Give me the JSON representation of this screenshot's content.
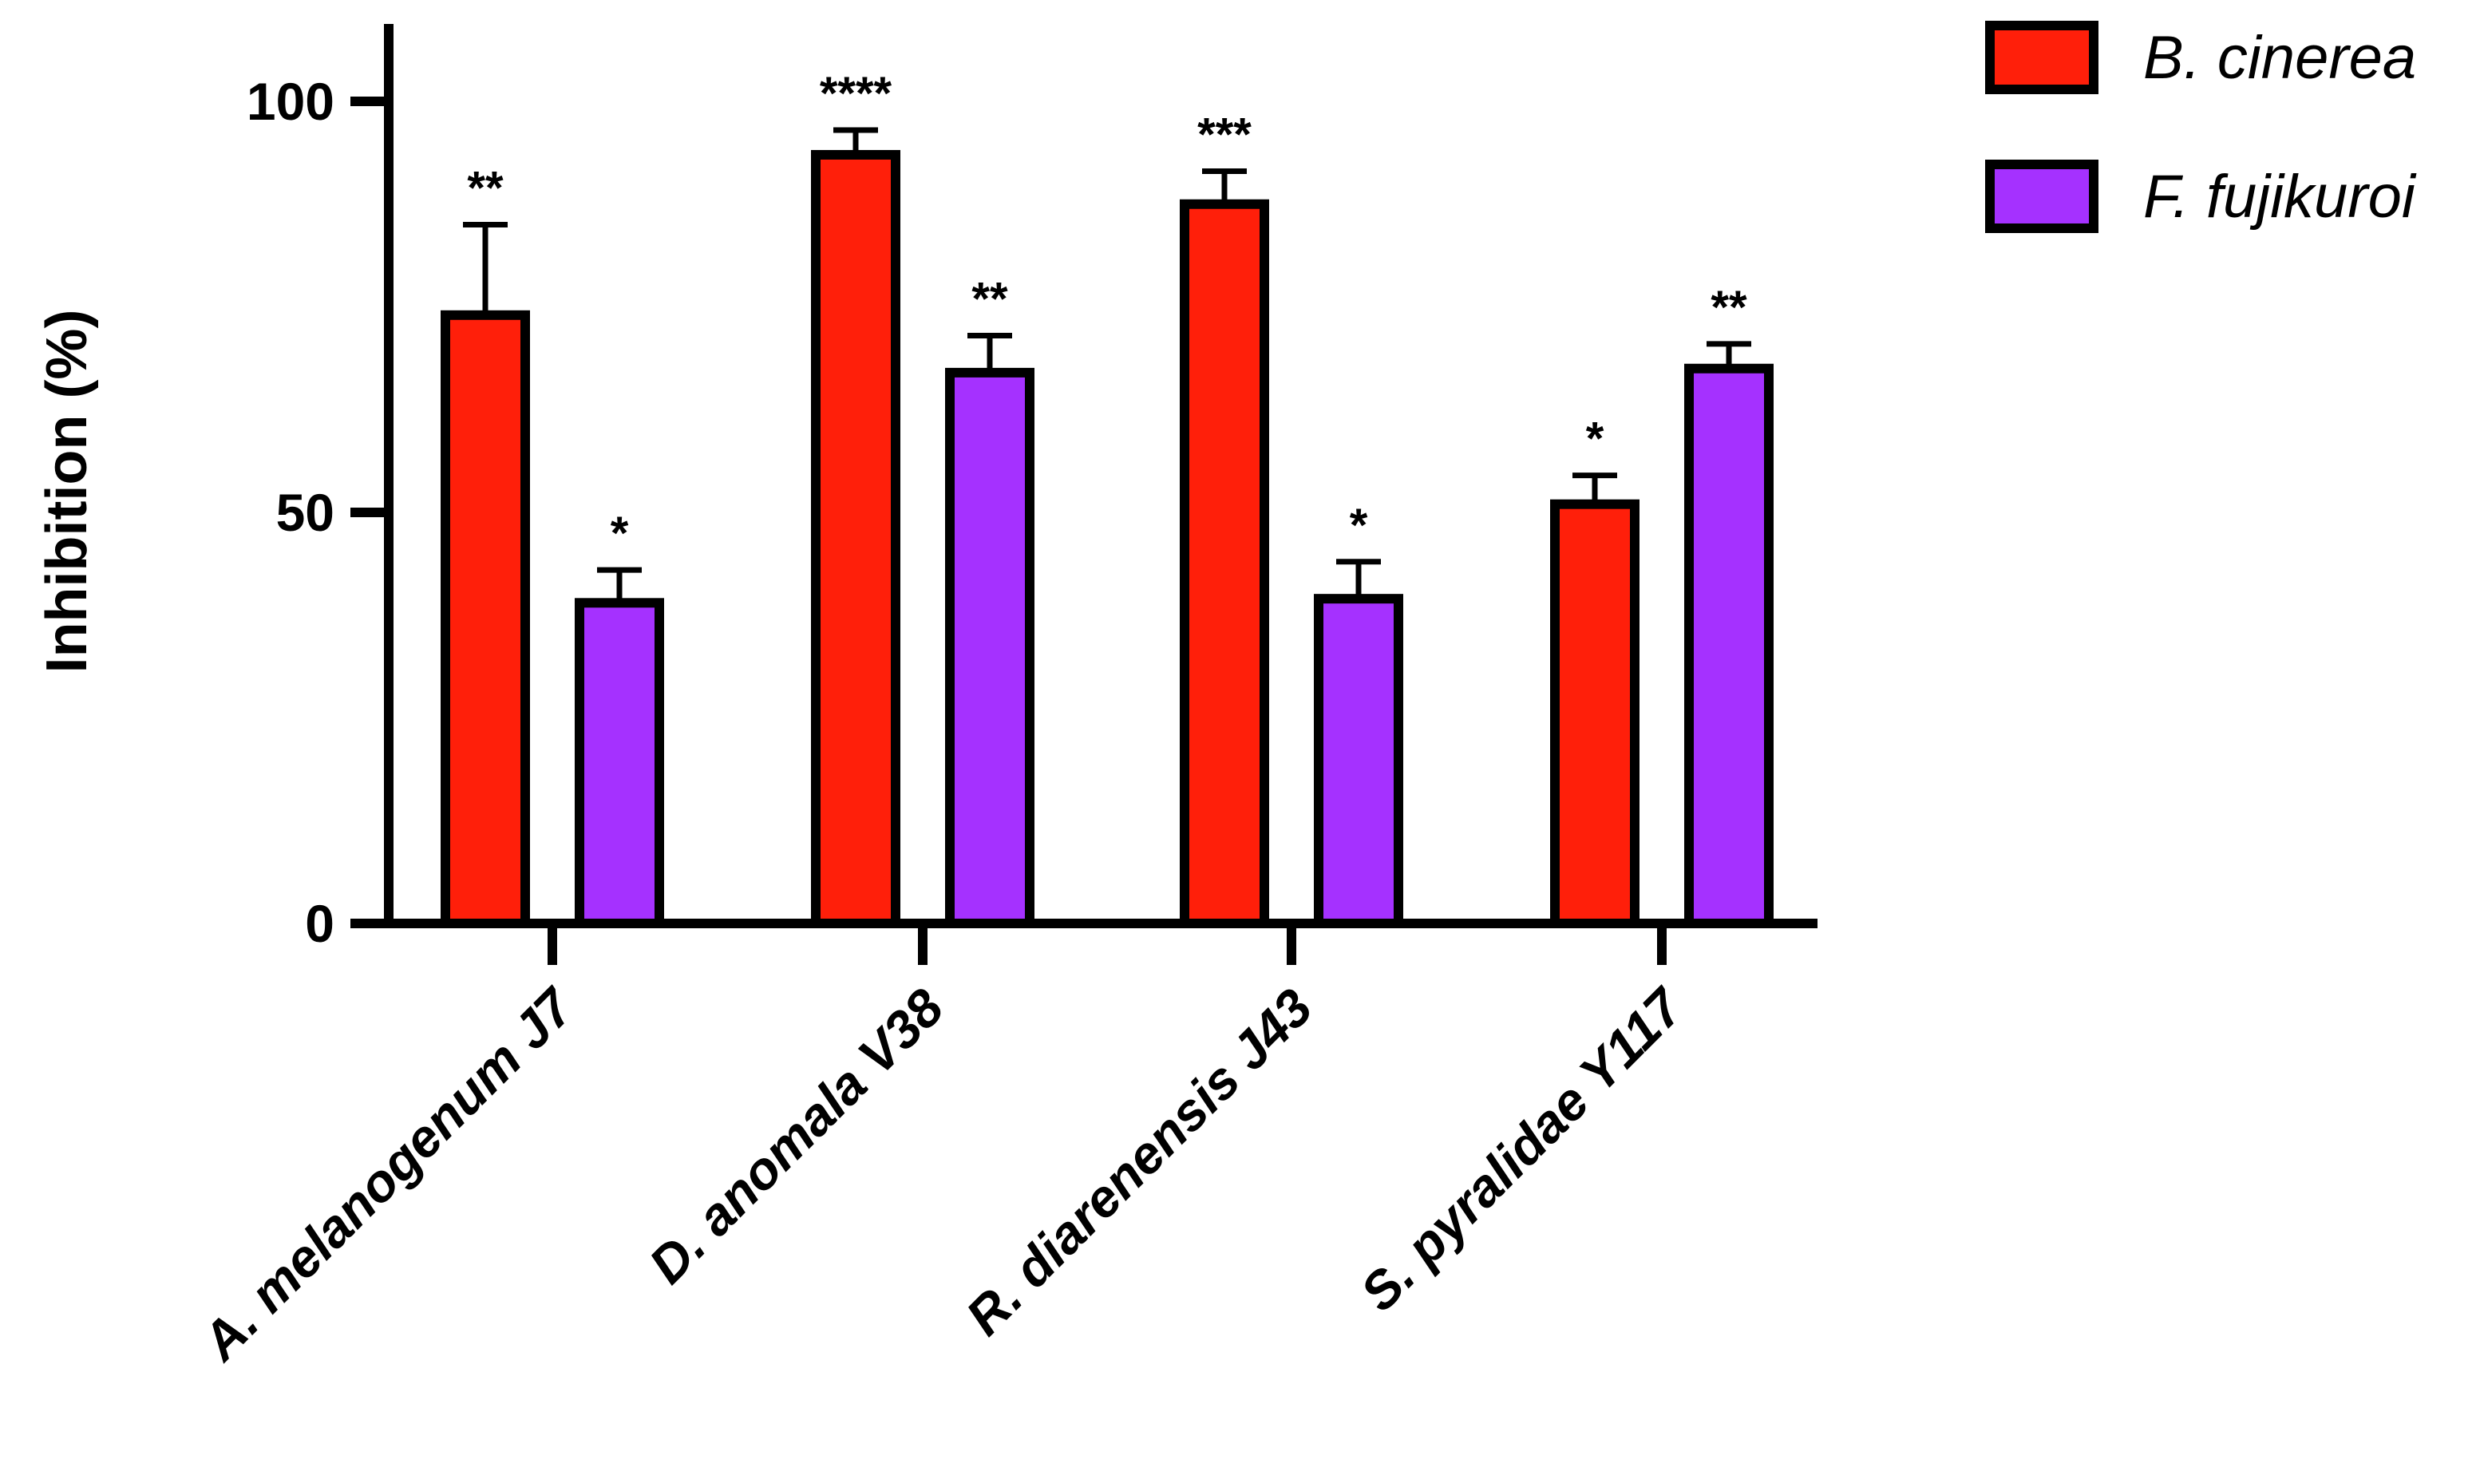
{
  "chart_data": {
    "type": "bar",
    "categories": [
      "A. melanogenum J7",
      "D. anomala V38",
      "R. diarenensis J43",
      "S. pyralidae Y117"
    ],
    "series": [
      {
        "name": "B. cinerea",
        "color": "#ff1f0a",
        "values": [
          74,
          93.5,
          87.5,
          51
        ],
        "errors": [
          11,
          3,
          4,
          3.5
        ],
        "significance": [
          "**",
          "****",
          "***",
          "*"
        ]
      },
      {
        "name": "F. fujikuroi",
        "color": "#a531ff",
        "values": [
          39,
          67,
          39.5,
          67.5
        ],
        "errors": [
          4,
          4.5,
          4.5,
          3
        ],
        "significance": [
          "*",
          "**",
          "*",
          "**"
        ]
      }
    ],
    "title": "",
    "xlabel": "",
    "ylabel": "Inhibition (%)",
    "ylim": [
      0,
      108
    ],
    "yticks": [
      0,
      50,
      100
    ],
    "grid": false,
    "legend": "top-right"
  }
}
